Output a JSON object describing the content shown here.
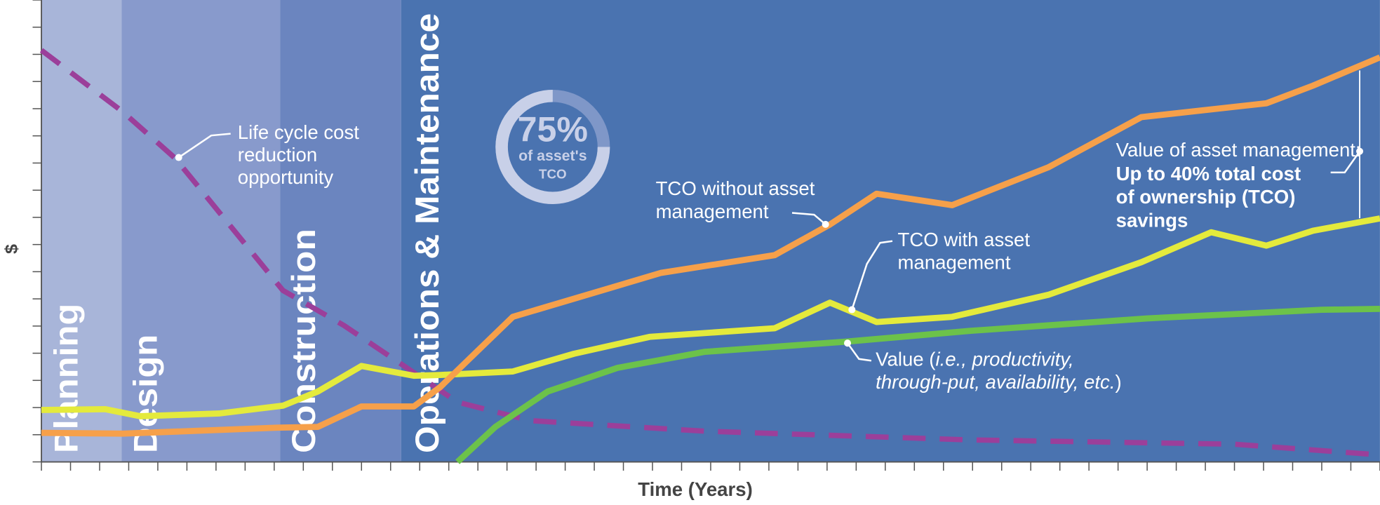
{
  "chart_data": {
    "type": "line",
    "x_label": "Time (Years)",
    "y_label": "$",
    "xlim": [
      0,
      46
    ],
    "ylim": [
      0,
      17
    ],
    "xticks": [
      0,
      1,
      2,
      3,
      4,
      5,
      6,
      7,
      8,
      9,
      10,
      11,
      12,
      13,
      14,
      15,
      16,
      17,
      18,
      19,
      20,
      21,
      22,
      23,
      24,
      25,
      26,
      27,
      28,
      29,
      30,
      31,
      32,
      33,
      34,
      35,
      36,
      37,
      38,
      39,
      40,
      41,
      42,
      43,
      44,
      45,
      46
    ],
    "yticks": [
      0,
      1,
      2,
      3,
      4,
      5,
      6,
      7,
      8,
      9,
      10,
      11,
      12,
      13,
      14,
      15,
      16,
      17
    ],
    "phases": [
      {
        "name": "Planning",
        "start": 0,
        "end": 2.76,
        "color": "#a8b5d9"
      },
      {
        "name": "Design",
        "start": 2.76,
        "end": 8.2,
        "color": "#889acc"
      },
      {
        "name": "Construction",
        "start": 8.2,
        "end": 12.36,
        "color": "#6b85bf"
      },
      {
        "name": "Operations & Maintenance",
        "start": 12.36,
        "end": 46,
        "color": "#4a73b0"
      }
    ],
    "series": [
      {
        "name": "Life cycle cost reduction opportunity",
        "color": "#9b3f9a",
        "dashed": true,
        "x": [
          0,
          2.8,
          4.6,
          8.3,
          10.4,
          12.2,
          14.3,
          16.8,
          22.8,
          31.9,
          41,
          46
        ],
        "values": [
          15.15,
          12.88,
          11.17,
          6.31,
          5.02,
          3.72,
          2.2,
          1.52,
          1.13,
          0.81,
          0.65,
          0.26
        ]
      },
      {
        "name": "Value",
        "color": "#6cc24a",
        "x": [
          14.3,
          15.6,
          17.4,
          19.8,
          22.8,
          27.7,
          31.9,
          38,
          44,
          46
        ],
        "values": [
          0,
          1.29,
          2.59,
          3.46,
          4.05,
          4.43,
          4.82,
          5.28,
          5.6,
          5.63
        ]
      },
      {
        "name": "TCO with asset management",
        "color": "#e4ea3c",
        "x": [
          0,
          2.2,
          3.4,
          6.1,
          8.3,
          9.5,
          11,
          12.8,
          13.7,
          16.2,
          18.3,
          20.9,
          25.2,
          27.1,
          28.7,
          31.3,
          34.6,
          37.8,
          40.2,
          42.1,
          43.7,
          46
        ],
        "values": [
          1.91,
          1.94,
          1.68,
          1.78,
          2.07,
          2.59,
          3.53,
          3.17,
          3.2,
          3.33,
          3.98,
          4.6,
          4.92,
          5.86,
          5.15,
          5.34,
          6.15,
          7.35,
          8.45,
          7.96,
          8.51,
          8.96
        ]
      },
      {
        "name": "TCO without asset management",
        "color": "#f6a04a",
        "x": [
          0,
          2.8,
          8.1,
          9.5,
          11,
          12.8,
          13.7,
          16.2,
          21.3,
          25.2,
          27.1,
          28.7,
          31.3,
          34.6,
          37.8,
          42.1,
          43.7,
          46
        ],
        "values": [
          1.07,
          1.04,
          1.26,
          1.29,
          2.04,
          2.04,
          2.75,
          5.34,
          6.96,
          7.61,
          8.74,
          9.87,
          9.45,
          10.84,
          12.69,
          13.2,
          13.85,
          14.89
        ]
      }
    ],
    "ring": {
      "value": 75,
      "label": "75%",
      "line1": "of asset's",
      "line2": "TCO"
    },
    "annotations": {
      "lifecycle": [
        "Life cycle cost",
        "reduction",
        "opportunity"
      ],
      "without": [
        "TCO without asset",
        "management"
      ],
      "with": [
        "TCO with asset",
        "management"
      ],
      "value": [
        [
          "Value (",
          "i.e., productivity,"
        ],
        [
          "through-put, availability, etc.",
          ")"
        ]
      ],
      "savings_head": "Value of asset management:",
      "savings": [
        "Up to 40% total cost",
        "of ownership (TCO)",
        "savings"
      ]
    }
  }
}
